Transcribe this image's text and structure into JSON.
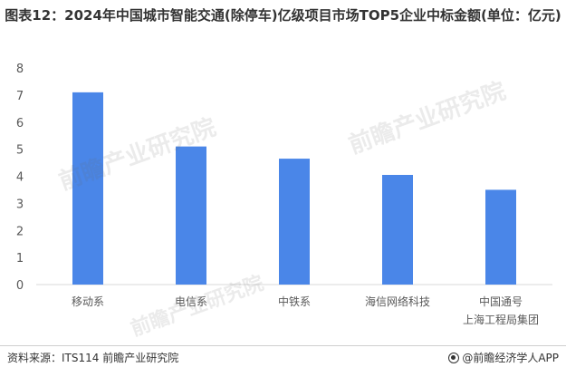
{
  "title": "图表12：2024年中国城市智能交通(除停车)亿级项目市场TOP5企业中标金额(单位：亿元)",
  "source": "资料来源：ITS114 前瞻产业研究院",
  "brand": "@前瞻经济学人APP",
  "watermark": "前瞻产业研究院",
  "colors": {
    "bar": "#4a86e8",
    "axis": "#d9d9d9",
    "text": "#595959"
  },
  "chart_data": {
    "type": "bar",
    "categories": [
      "移动系",
      "电信系",
      "中铁系",
      "海信网络科技",
      "中国通号\n上海工程局集团"
    ],
    "values": [
      7.1,
      5.1,
      4.65,
      4.05,
      3.5
    ],
    "yticks": [
      "0",
      "1",
      "2",
      "3",
      "4",
      "5",
      "6",
      "7",
      "8"
    ],
    "ylim": [
      0,
      8
    ],
    "grid": false
  }
}
